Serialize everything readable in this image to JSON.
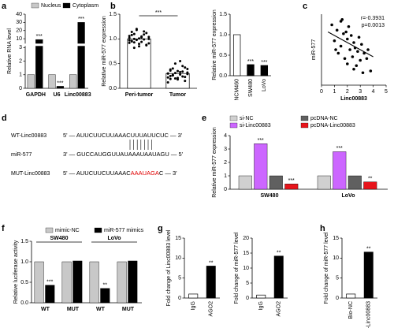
{
  "chart_data": [
    {
      "type": "bar",
      "label": "a",
      "ylabel": "Relative RNA level",
      "categories": [
        "GAPDH",
        "U6",
        "Linc00883"
      ],
      "series": [
        {
          "name": "Nucleus",
          "color": "#c8c8c8",
          "values": [
            1,
            1,
            1
          ],
          "significance": [
            null,
            null,
            null
          ]
        },
        {
          "name": "Cytoplasm",
          "color": "#000000",
          "values": [
            9,
            0.15,
            30
          ],
          "significance": [
            "***",
            "***",
            "***"
          ]
        }
      ],
      "axis_segments": [
        {
          "ylim": [
            0,
            3
          ],
          "yticks": [
            0,
            1,
            2,
            3
          ]
        },
        {
          "ylim": [
            5,
            40
          ],
          "yticks": [
            10,
            20,
            30,
            40
          ]
        }
      ]
    },
    {
      "type": "dotbar",
      "label": "b",
      "ylabel": "Relative  miR-577 expression",
      "categories": [
        "Peri-tumor",
        "Tumor"
      ],
      "values": [
        1.0,
        0.3
      ],
      "colors": [
        "#ffffff",
        "#ffffff"
      ],
      "points": [
        [
          1.02,
          0.95,
          1.1,
          0.98,
          0.9,
          1.05,
          1.15,
          0.88,
          1.0,
          0.97,
          1.08,
          0.93,
          1.2,
          0.85,
          1.03,
          0.99,
          1.12,
          0.91,
          1.06,
          0.96,
          0.82,
          1.18,
          1.01,
          0.94,
          1.09,
          0.87,
          1.04,
          0.92,
          1.14,
          1.0
        ],
        [
          0.3,
          0.25,
          0.4,
          0.2,
          0.35,
          0.28,
          0.45,
          0.15,
          0.32,
          0.22,
          0.38,
          0.27,
          0.5,
          0.18,
          0.33,
          0.24,
          0.42,
          0.29,
          0.12,
          0.36,
          0.26,
          0.31,
          0.21,
          0.55,
          0.34,
          0.23,
          0.39,
          0.3,
          0.19,
          0.27
        ]
      ],
      "significance": "***",
      "ylim": [
        0,
        1.5
      ],
      "yticks": [
        {
          "value": 0,
          "label": "0.0"
        },
        {
          "value": 0.5,
          "label": "0.5"
        },
        {
          "value": 1,
          "label": "1.0"
        },
        {
          "value": 1.5,
          "label": "1.5"
        }
      ]
    },
    {
      "type": "bar",
      "ylabel": "Relative miR-577 expression",
      "categories": [
        "NCM460",
        "SW480",
        "LoVo"
      ],
      "values": [
        1.0,
        0.27,
        0.25
      ],
      "colors": [
        "#ffffff",
        "#000000",
        "#000000"
      ],
      "significance": [
        null,
        "***",
        "***"
      ],
      "ylim": [
        0,
        1.5
      ],
      "yticks": [
        {
          "value": 0,
          "label": "0.0"
        },
        {
          "value": 0.5,
          "label": "0.5"
        },
        {
          "value": 1,
          "label": "1.0"
        },
        {
          "value": 1.5,
          "label": "1.5"
        }
      ]
    },
    {
      "type": "scatter",
      "label": "c",
      "xlabel": "Linc00883",
      "ylabel": "miR-577",
      "annotations": [
        "r=-0.3931",
        "p=0.0013"
      ],
      "x": [
        0.8,
        1.0,
        1.2,
        1.3,
        1.5,
        1.5,
        1.7,
        1.8,
        1.9,
        2.0,
        2.0,
        2.1,
        2.2,
        2.3,
        2.4,
        2.5,
        2.5,
        2.6,
        2.8,
        2.9,
        3.0,
        3.1,
        3.2,
        3.3,
        3.5,
        3.6,
        3.8,
        1.1,
        1.6,
        2.7
      ],
      "y": [
        3.4,
        2.5,
        3.1,
        1.8,
        3.6,
        2.2,
        2.9,
        1.5,
        3.0,
        2.6,
        1.2,
        3.3,
        2.0,
        2.8,
        1.6,
        2.4,
        0.9,
        2.1,
        1.9,
        2.7,
        1.4,
        2.3,
        0.7,
        1.8,
        1.5,
        2.0,
        0.8,
        2.0,
        3.7,
        1.1
      ],
      "trendline": {
        "x": [
          0.5,
          4.0
        ],
        "y": [
          3.0,
          1.6
        ]
      },
      "xlim": [
        0,
        5
      ],
      "xticks": [
        0,
        1,
        2,
        3,
        4,
        5
      ],
      "ylim": [
        0,
        4
      ]
    },
    {
      "type": "sequence",
      "label": "d",
      "rows": [
        {
          "name": "WT-Linc00883",
          "parts": [
            {
              "text": "5' — AUUCUUCUUAAACUUUAUUCUC — 3'",
              "color": "#000000"
            }
          ]
        },
        {
          "name": "miR-577",
          "parts": [
            {
              "text": "3' — GUCCAUGGUUAUAAAUAAUAGU — 5'",
              "color": "#000000"
            }
          ]
        },
        {
          "name": "MUT-Linc00883",
          "parts": [
            {
              "text": "5' — AUUCUUCUUAAAC",
              "color": "#000000"
            },
            {
              "text": "AAAUAGA",
              "color": "#e00000"
            },
            {
              "text": "C — 3'",
              "color": "#000000"
            }
          ]
        }
      ]
    },
    {
      "type": "bar",
      "label": "e",
      "ylabel": "Relative miR-577 expression",
      "categories": [
        "SW480",
        "LoVo"
      ],
      "series": [
        {
          "name": "si-NC",
          "color": "#d0d0d0",
          "values": [
            1.0,
            1.0
          ],
          "significance": [
            null,
            null
          ]
        },
        {
          "name": "si-Linc00883",
          "color": "#cc66ff",
          "values": [
            3.4,
            2.8
          ],
          "significance": [
            "***",
            "***"
          ]
        },
        {
          "name": "pcDNA-NC",
          "color": "#606060",
          "values": [
            1.0,
            1.0
          ],
          "significance": [
            null,
            null
          ]
        },
        {
          "name": "pcDNA-Linc00883",
          "color": "#e8141b",
          "values": [
            0.4,
            0.55
          ],
          "significance": [
            "***",
            "**"
          ]
        }
      ],
      "ylim": [
        0,
        4
      ],
      "yticks": [
        0,
        1,
        2,
        3,
        4
      ]
    },
    {
      "type": "bar",
      "label": "f",
      "ylabel": "Relative luciferase activity",
      "categories": [
        "WT",
        "MUT",
        "WT",
        "MUT"
      ],
      "groups": [
        "SW480",
        "LoVo"
      ],
      "series": [
        {
          "name": "mimic-NC",
          "color": "#c8c8c8",
          "values": [
            1.0,
            1.0,
            1.0,
            1.0
          ],
          "significance": [
            null,
            null,
            null,
            null
          ]
        },
        {
          "name": "miR-577 mimics",
          "color": "#000000",
          "values": [
            0.43,
            1.02,
            0.35,
            1.02
          ],
          "significance": [
            "***",
            null,
            "**",
            null
          ]
        }
      ],
      "ylim": [
        0,
        1.5
      ],
      "yticks": [
        {
          "value": 0,
          "label": "0.0"
        },
        {
          "value": 0.5,
          "label": "0.5"
        },
        {
          "value": 1,
          "label": "1.0"
        },
        {
          "value": 1.5,
          "label": "1.5"
        }
      ]
    },
    {
      "type": "bar",
      "label": "g",
      "ylabel": "Fold change of Linc00883 level",
      "categories": [
        "IgG",
        "AGO2"
      ],
      "values": [
        1,
        8
      ],
      "colors": [
        "#ffffff",
        "#000000"
      ],
      "significance": [
        null,
        "**"
      ],
      "ylim": [
        0,
        15
      ],
      "yticks": [
        0,
        5,
        10,
        15
      ]
    },
    {
      "type": "bar",
      "ylabel": "Fold change of miR-577 level",
      "categories": [
        "IgG",
        "AGO2"
      ],
      "values": [
        1,
        14
      ],
      "colors": [
        "#ffffff",
        "#000000"
      ],
      "significance": [
        null,
        "**"
      ],
      "ylim": [
        0,
        20
      ],
      "yticks": [
        0,
        5,
        10,
        15,
        20
      ]
    },
    {
      "type": "bar",
      "label": "h",
      "ylabel": "Fold change of miR-577 level",
      "categories": [
        "Bio-NC",
        "Bio-Linc00883"
      ],
      "values": [
        1,
        11.5
      ],
      "colors": [
        "#ffffff",
        "#000000"
      ],
      "significance": [
        null,
        "**"
      ],
      "ylim": [
        0,
        15
      ],
      "yticks": [
        0,
        5,
        10,
        15
      ]
    }
  ]
}
